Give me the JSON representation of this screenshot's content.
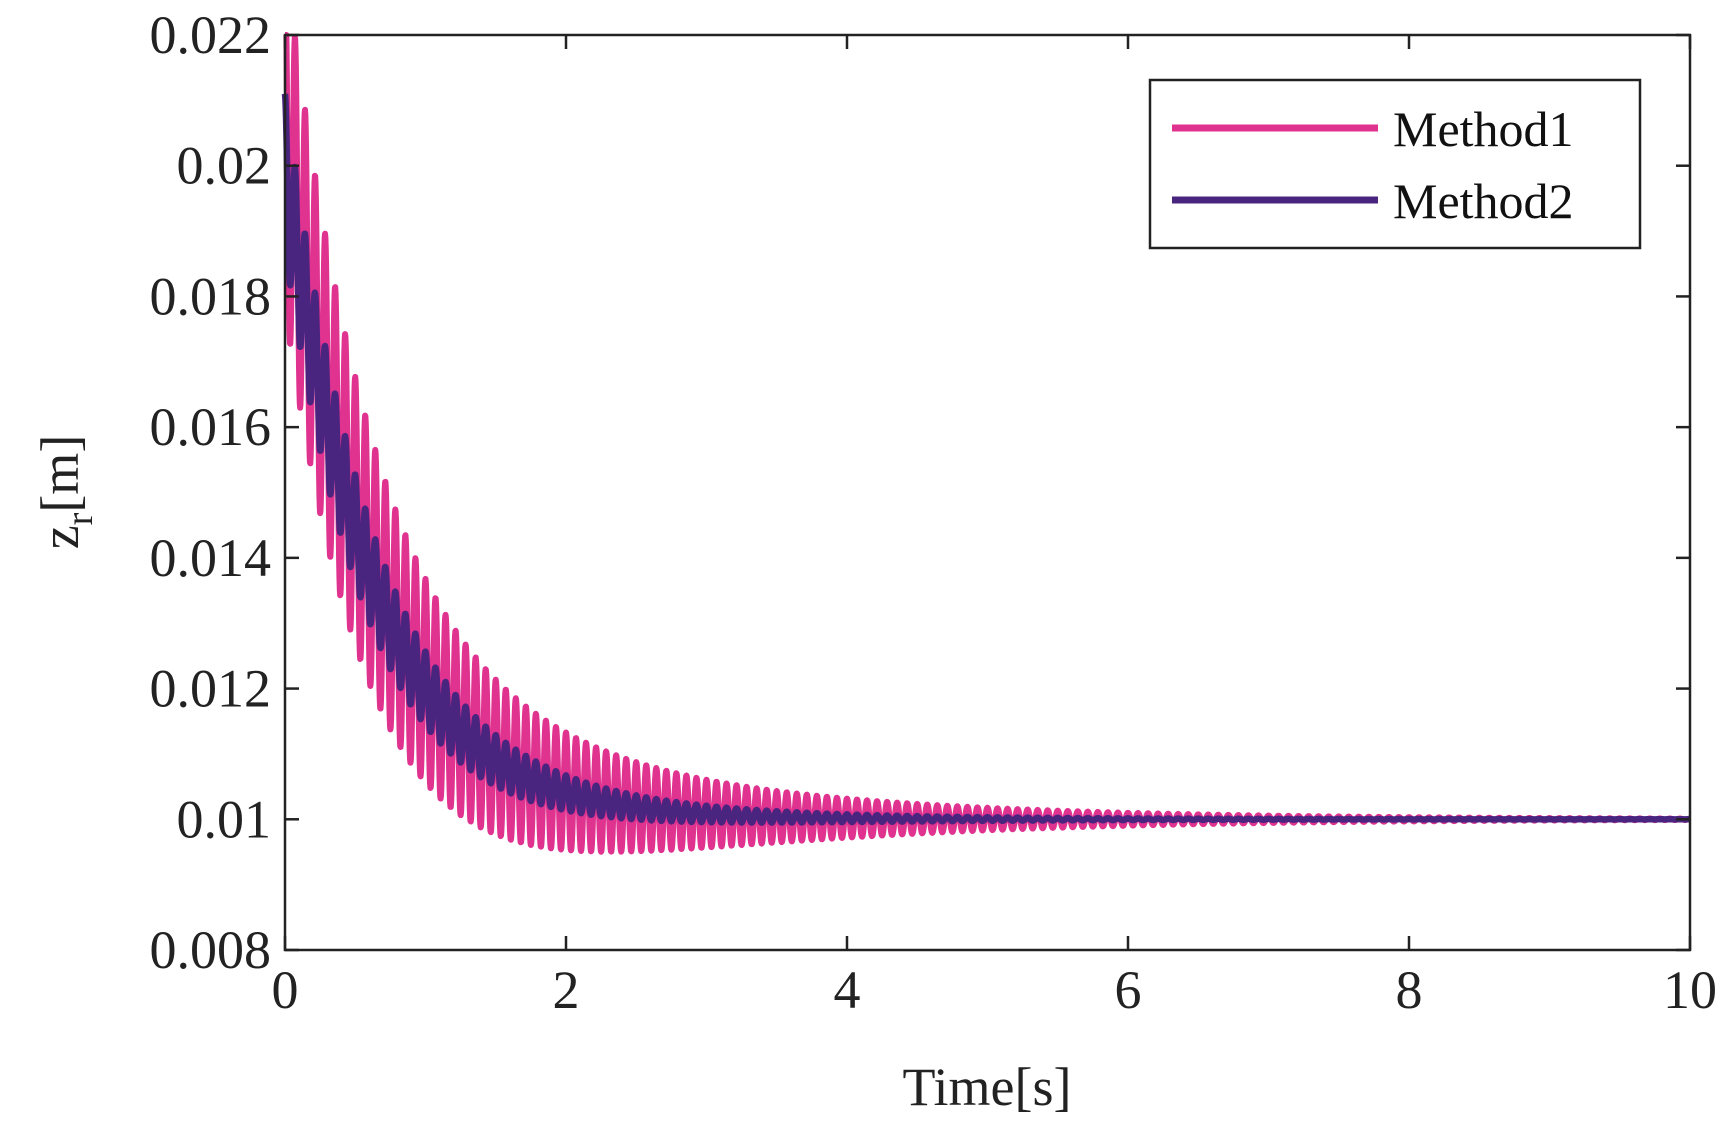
{
  "chart_data": {
    "type": "line",
    "title": "",
    "xlabel": "Time[s]",
    "ylabel_main": "z",
    "ylabel_sub": "r",
    "ylabel_unit": "[m]",
    "xlim": [
      0,
      10
    ],
    "ylim": [
      0.008,
      0.022
    ],
    "xticks": [
      0,
      2,
      4,
      6,
      8,
      10
    ],
    "xtick_labels": [
      "0",
      "2",
      "4",
      "6",
      "8",
      "10"
    ],
    "yticks": [
      0.008,
      0.01,
      0.012,
      0.014,
      0.016,
      0.018,
      0.02,
      0.022
    ],
    "ytick_labels": [
      "0.008",
      "0.01",
      "0.012",
      "0.014",
      "0.016",
      "0.018",
      "0.02",
      "0.022"
    ],
    "grid": false,
    "legend_position": "top-right",
    "series": [
      {
        "name": "Method1",
        "color": "#e0338f",
        "model": "damped-oscillation",
        "steady_value": 0.01,
        "initial_value": 0.0205,
        "amplitude": 0.0027,
        "amplitude_decay": 0.55,
        "trend_decay": 1.6,
        "frequency_hz": 14.0
      },
      {
        "name": "Method2",
        "color": "#4a2580",
        "model": "damped-oscillation",
        "steady_value": 0.01,
        "initial_value": 0.0199,
        "amplitude": 0.0012,
        "amplitude_decay": 0.75,
        "trend_decay": 1.6,
        "frequency_hz": 14.0
      }
    ]
  }
}
